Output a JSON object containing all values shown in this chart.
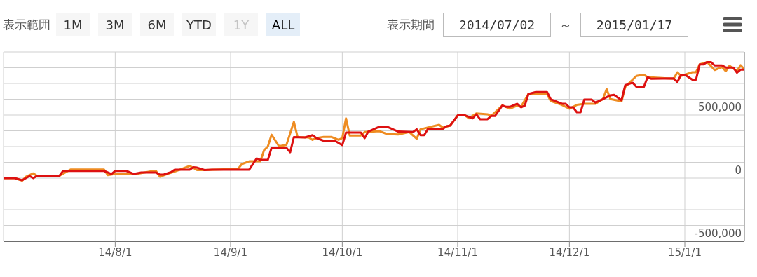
{
  "chart_data": {
    "type": "line",
    "annotations": [
      "表示範囲",
      "1M",
      "3M",
      "6M",
      "YTD",
      "1Y",
      "ALL",
      "表示期間",
      "2014/07/02",
      "～",
      "2015/01/17"
    ],
    "xlim": [
      "2014-07-02",
      "2015-01-17"
    ],
    "xticks": [
      {
        "value": "2014-08-01",
        "label": "14/8/1"
      },
      {
        "value": "2014-09-01",
        "label": "14/9/1"
      },
      {
        "value": "2014-10-01",
        "label": "14/10/1"
      },
      {
        "value": "2014-11-01",
        "label": "14/11/1"
      },
      {
        "value": "2014-12-01",
        "label": "14/12/1"
      },
      {
        "value": "2015-01-01",
        "label": "15/1/1"
      }
    ],
    "ylim": [
      -500000,
      1000000
    ],
    "yticks": [
      {
        "value": -500000,
        "label": "-500,000"
      },
      {
        "value": -375000,
        "label": null
      },
      {
        "value": -250000,
        "label": null
      },
      {
        "value": -125000,
        "label": null
      },
      {
        "value": 0,
        "label": "0"
      },
      {
        "value": 125000,
        "label": null
      },
      {
        "value": 250000,
        "label": null
      },
      {
        "value": 375000,
        "label": null
      },
      {
        "value": 500000,
        "label": "500,000"
      },
      {
        "value": 625000,
        "label": null
      },
      {
        "value": 750000,
        "label": null
      },
      {
        "value": 875000,
        "label": null
      },
      {
        "value": 1000000,
        "label": null
      }
    ],
    "grid": true,
    "marker": "none",
    "line_style": "solid",
    "series": [
      {
        "color": "#ee8c22",
        "x": [
          "2014-07-02",
          "2014-07-05",
          "2014-07-07",
          "2014-07-08",
          "2014-07-10",
          "2014-07-11",
          "2014-07-17",
          "2014-07-20",
          "2014-07-29",
          "2014-07-30",
          "2014-08-01",
          "2014-08-07",
          "2014-08-11",
          "2014-08-12",
          "2014-08-13",
          "2014-08-15",
          "2014-08-17",
          "2014-08-21",
          "2014-08-23",
          "2014-08-25",
          "2014-09-03",
          "2014-09-04",
          "2014-09-06",
          "2014-09-09",
          "2014-09-10",
          "2014-09-11",
          "2014-09-12",
          "2014-09-14",
          "2014-09-16",
          "2014-09-18",
          "2014-09-19",
          "2014-09-22",
          "2014-09-23",
          "2014-09-24",
          "2014-09-26",
          "2014-09-28",
          "2014-09-30",
          "2014-10-01",
          "2014-10-02",
          "2014-10-03",
          "2014-10-06",
          "2014-10-07",
          "2014-10-11",
          "2014-10-13",
          "2014-10-16",
          "2014-10-19",
          "2014-10-21",
          "2014-10-22",
          "2014-10-27",
          "2014-10-28",
          "2014-10-30",
          "2014-11-01",
          "2014-11-03",
          "2014-11-04",
          "2014-11-06",
          "2014-11-09",
          "2014-11-10",
          "2014-11-13",
          "2014-11-15",
          "2014-11-17",
          "2014-11-18",
          "2014-11-20",
          "2014-11-25",
          "2014-11-26",
          "2014-11-29",
          "2014-12-01",
          "2014-12-03",
          "2014-12-05",
          "2014-12-08",
          "2014-12-10",
          "2014-12-11",
          "2014-12-12",
          "2014-12-15",
          "2014-12-16",
          "2014-12-19",
          "2014-12-21",
          "2014-12-22",
          "2014-12-29",
          "2014-12-30",
          "2014-12-31",
          "2015-01-03",
          "2015-01-04",
          "2015-01-05",
          "2015-01-07",
          "2015-01-09",
          "2015-01-11",
          "2015-01-12",
          "2015-01-13",
          "2015-01-15",
          "2015-01-16",
          "2015-01-17"
        ],
        "values": [
          0,
          0,
          -20000,
          10000,
          38000,
          18000,
          18000,
          68000,
          68000,
          24000,
          33000,
          35000,
          55000,
          55000,
          11000,
          33000,
          52000,
          97000,
          64000,
          64000,
          73000,
          111000,
          133000,
          133000,
          222000,
          250000,
          344000,
          253000,
          263000,
          446000,
          325000,
          322000,
          303000,
          317000,
          327000,
          327000,
          303000,
          317000,
          474000,
          338000,
          338000,
          365000,
          372000,
          350000,
          346000,
          365000,
          312000,
          387000,
          422000,
          400000,
          417000,
          497000,
          497000,
          474000,
          513000,
          506000,
          493000,
          576000,
          551000,
          574000,
          565000,
          667000,
          667000,
          610000,
          580000,
          550000,
          580000,
          589000,
          589000,
          626000,
          706000,
          626000,
          608000,
          723000,
          810000,
          819000,
          800000,
          787000,
          839000,
          810000,
          839000,
          839000,
          902000,
          920000,
          857000,
          880000,
          848000,
          891000,
          848000,
          895000,
          863000
        ]
      },
      {
        "color": "#dd1111",
        "x": [
          "2014-07-02",
          "2014-07-05",
          "2014-07-07",
          "2014-07-09",
          "2014-07-10",
          "2014-07-11",
          "2014-07-17",
          "2014-07-18",
          "2014-07-29",
          "2014-07-31",
          "2014-08-01",
          "2014-08-04",
          "2014-08-06",
          "2014-08-08",
          "2014-08-12",
          "2014-08-13",
          "2014-08-14",
          "2014-08-16",
          "2014-08-17",
          "2014-08-21",
          "2014-08-22",
          "2014-08-23",
          "2014-08-25",
          "2014-08-27",
          "2014-09-06",
          "2014-09-08",
          "2014-09-09",
          "2014-09-11",
          "2014-09-12",
          "2014-09-16",
          "2014-09-17",
          "2014-09-18",
          "2014-09-21",
          "2014-09-23",
          "2014-09-24",
          "2014-09-26",
          "2014-09-29",
          "2014-10-01",
          "2014-10-02",
          "2014-10-06",
          "2014-10-07",
          "2014-10-08",
          "2014-10-11",
          "2014-10-13",
          "2014-10-16",
          "2014-10-20",
          "2014-10-21",
          "2014-10-22",
          "2014-10-23",
          "2014-10-24",
          "2014-10-28",
          "2014-10-29",
          "2014-10-30",
          "2014-11-01",
          "2014-11-03",
          "2014-11-05",
          "2014-11-06",
          "2014-11-07",
          "2014-11-09",
          "2014-11-10",
          "2014-11-11",
          "2014-11-13",
          "2014-11-14",
          "2014-11-15",
          "2014-11-17",
          "2014-11-18",
          "2014-11-19",
          "2014-11-20",
          "2014-11-22",
          "2014-11-25",
          "2014-11-26",
          "2014-11-29",
          "2014-11-30",
          "2014-12-01",
          "2014-12-02",
          "2014-12-03",
          "2014-12-04",
          "2014-12-05",
          "2014-12-07",
          "2014-12-08",
          "2014-12-10",
          "2014-12-12",
          "2014-12-13",
          "2014-12-15",
          "2014-12-16",
          "2014-12-18",
          "2014-12-19",
          "2014-12-21",
          "2014-12-22",
          "2014-12-23",
          "2014-12-29",
          "2014-12-30",
          "2014-12-31",
          "2015-01-01",
          "2015-01-03",
          "2015-01-04",
          "2015-01-05",
          "2015-01-06",
          "2015-01-07",
          "2015-01-08",
          "2015-01-09",
          "2015-01-11",
          "2015-01-12",
          "2015-01-14",
          "2015-01-15",
          "2015-01-16",
          "2015-01-17"
        ],
        "values": [
          0,
          0,
          -17000,
          17000,
          0,
          18000,
          18000,
          57000,
          57000,
          33000,
          57000,
          57000,
          33000,
          44000,
          44000,
          28000,
          28000,
          47000,
          67000,
          67000,
          86000,
          83000,
          64000,
          67000,
          67000,
          156000,
          144000,
          144000,
          240000,
          240000,
          205000,
          325000,
          322000,
          340000,
          318000,
          296000,
          296000,
          261000,
          361000,
          361000,
          317000,
          369000,
          407000,
          407000,
          369000,
          365000,
          387000,
          340000,
          340000,
          390000,
          390000,
          411000,
          417000,
          497000,
          497000,
          474000,
          506000,
          467000,
          467000,
          493000,
          493000,
          576000,
          565000,
          565000,
          589000,
          561000,
          574000,
          667000,
          682000,
          682000,
          624000,
          589000,
          589000,
          561000,
          561000,
          522000,
          522000,
          622000,
          622000,
          598000,
          626000,
          656000,
          660000,
          617000,
          737000,
          756000,
          723000,
          723000,
          800000,
          787000,
          790000,
          762000,
          819000,
          819000,
          780000,
          780000,
          902000,
          902000,
          920000,
          920000,
          893000,
          893000,
          877000,
          877000,
          835000,
          860000,
          860000
        ]
      }
    ]
  }
}
